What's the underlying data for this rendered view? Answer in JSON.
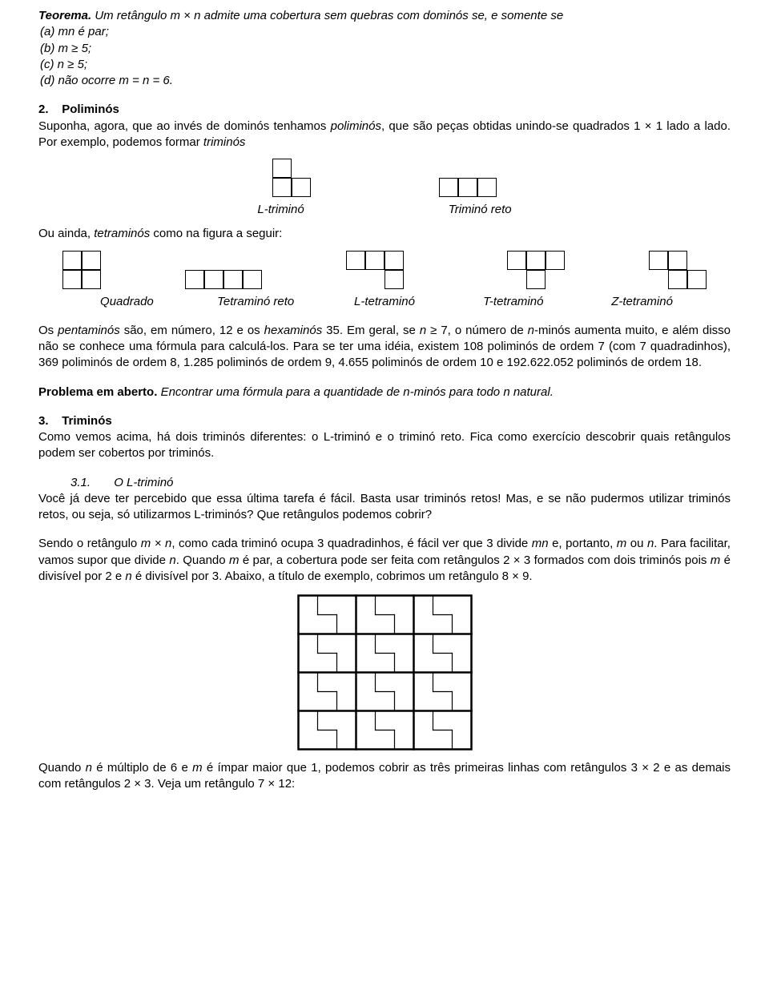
{
  "teorema": {
    "title": "Teorema.",
    "text": "Um retângulo m × n admite uma cobertura sem quebras com dominós se, e somente se",
    "a": "(a)  mn é par;",
    "b": "(b)  m ≥ 5;",
    "c": "(c)  n ≥ 5;",
    "d": "(d)  não ocorre m = n = 6."
  },
  "sec2": {
    "num": "2.",
    "title": "Poliminós",
    "p1a": "Suponha, agora, que ao invés de dominós tenhamos ",
    "p1b": "poliminós",
    "p1c": ", que são peças obtidas unindo-se quadrados 1 × 1 lado a lado. Por exemplo, podemos formar ",
    "p1d": "triminós"
  },
  "trimino": {
    "l": "L-triminó",
    "reto": "Triminó reto",
    "intro": "Ou ainda, ",
    "intro_it": "tetraminós",
    "intro2": " como na figura a seguir:"
  },
  "tetra": {
    "quadrado": "Quadrado",
    "reto": "Tetraminó reto",
    "l": "L-tetraminó",
    "t": "T-tetraminó",
    "z": "Z-tetraminó"
  },
  "penta": {
    "p1a": "Os ",
    "p1b": "pentaminós",
    "p1c": " são, em número, 12 e os ",
    "p1d": "hexaminós",
    "p1e": " 35. Em geral, se ",
    "p1f": "n",
    "p1g": " ≥ 7, o número de ",
    "p1h": "n",
    "p1i": "-minós aumenta muito, e além disso não se conhece uma fórmula para calculá-los. Para se ter uma idéia, existem 108 poliminós de ordem 7 (com 7 quadradinhos), 369 poliminós de ordem 8, 1.285 poliminós de ordem 9, 4.655 poliminós de ordem 10 e 192.622.052 poliminós de ordem 18."
  },
  "problema": {
    "title": "Problema em aberto.",
    "text": "Encontrar uma fórmula para a quantidade de n-minós para todo n natural."
  },
  "sec3": {
    "num": "3.",
    "title": "Triminós",
    "p1": "Como vemos acima, há dois triminós diferentes: o L-triminó e o triminó reto. Fica como exercício descobrir quais retângulos podem ser cobertos por triminós."
  },
  "sec31": {
    "num": "3.1.",
    "title": "O L-triminó",
    "p1": "Você já deve ter percebido que essa última tarefa é fácil. Basta usar triminós retos! Mas, e se não pudermos utilizar triminós retos, ou seja, só utilizarmos L-triminós? Que retângulos podemos cobrir?"
  },
  "p_mn": {
    "t1": "Sendo o retângulo ",
    "t2": "m × n",
    "t3": ", como cada triminó ocupa 3 quadradinhos, é fácil ver que 3 divide ",
    "t4": "mn",
    "t5": " e, portanto, ",
    "t6": "m",
    "t7": " ou ",
    "t8": "n",
    "t9": ". Para facilitar, vamos supor que divide ",
    "t10": "n",
    "t11": ". Quando ",
    "t12": "m",
    "t13": " é par, a cobertura pode ser feita com retângulos 2 × 3 formados com dois triminós pois ",
    "t14": "m",
    "t15": " é divisível por 2 e ",
    "t16": "n",
    "t17": " é divisível por 3. Abaixo, a título de exemplo, cobrimos um retângulo 8 × 9."
  },
  "p_last": {
    "t1": "Quando ",
    "t2": "n",
    "t3": " é múltiplo de 6 e ",
    "t4": "m",
    "t5": " é ímpar maior que 1, podemos cobrir as três primeiras linhas com retângulos 3 × 2 e as demais com retângulos 2 × 3. Veja um retângulo 7 × 12:"
  },
  "grid8x9": {
    "rows": 8,
    "cols": 9,
    "cell_size": 24,
    "border_color": "#000000"
  }
}
